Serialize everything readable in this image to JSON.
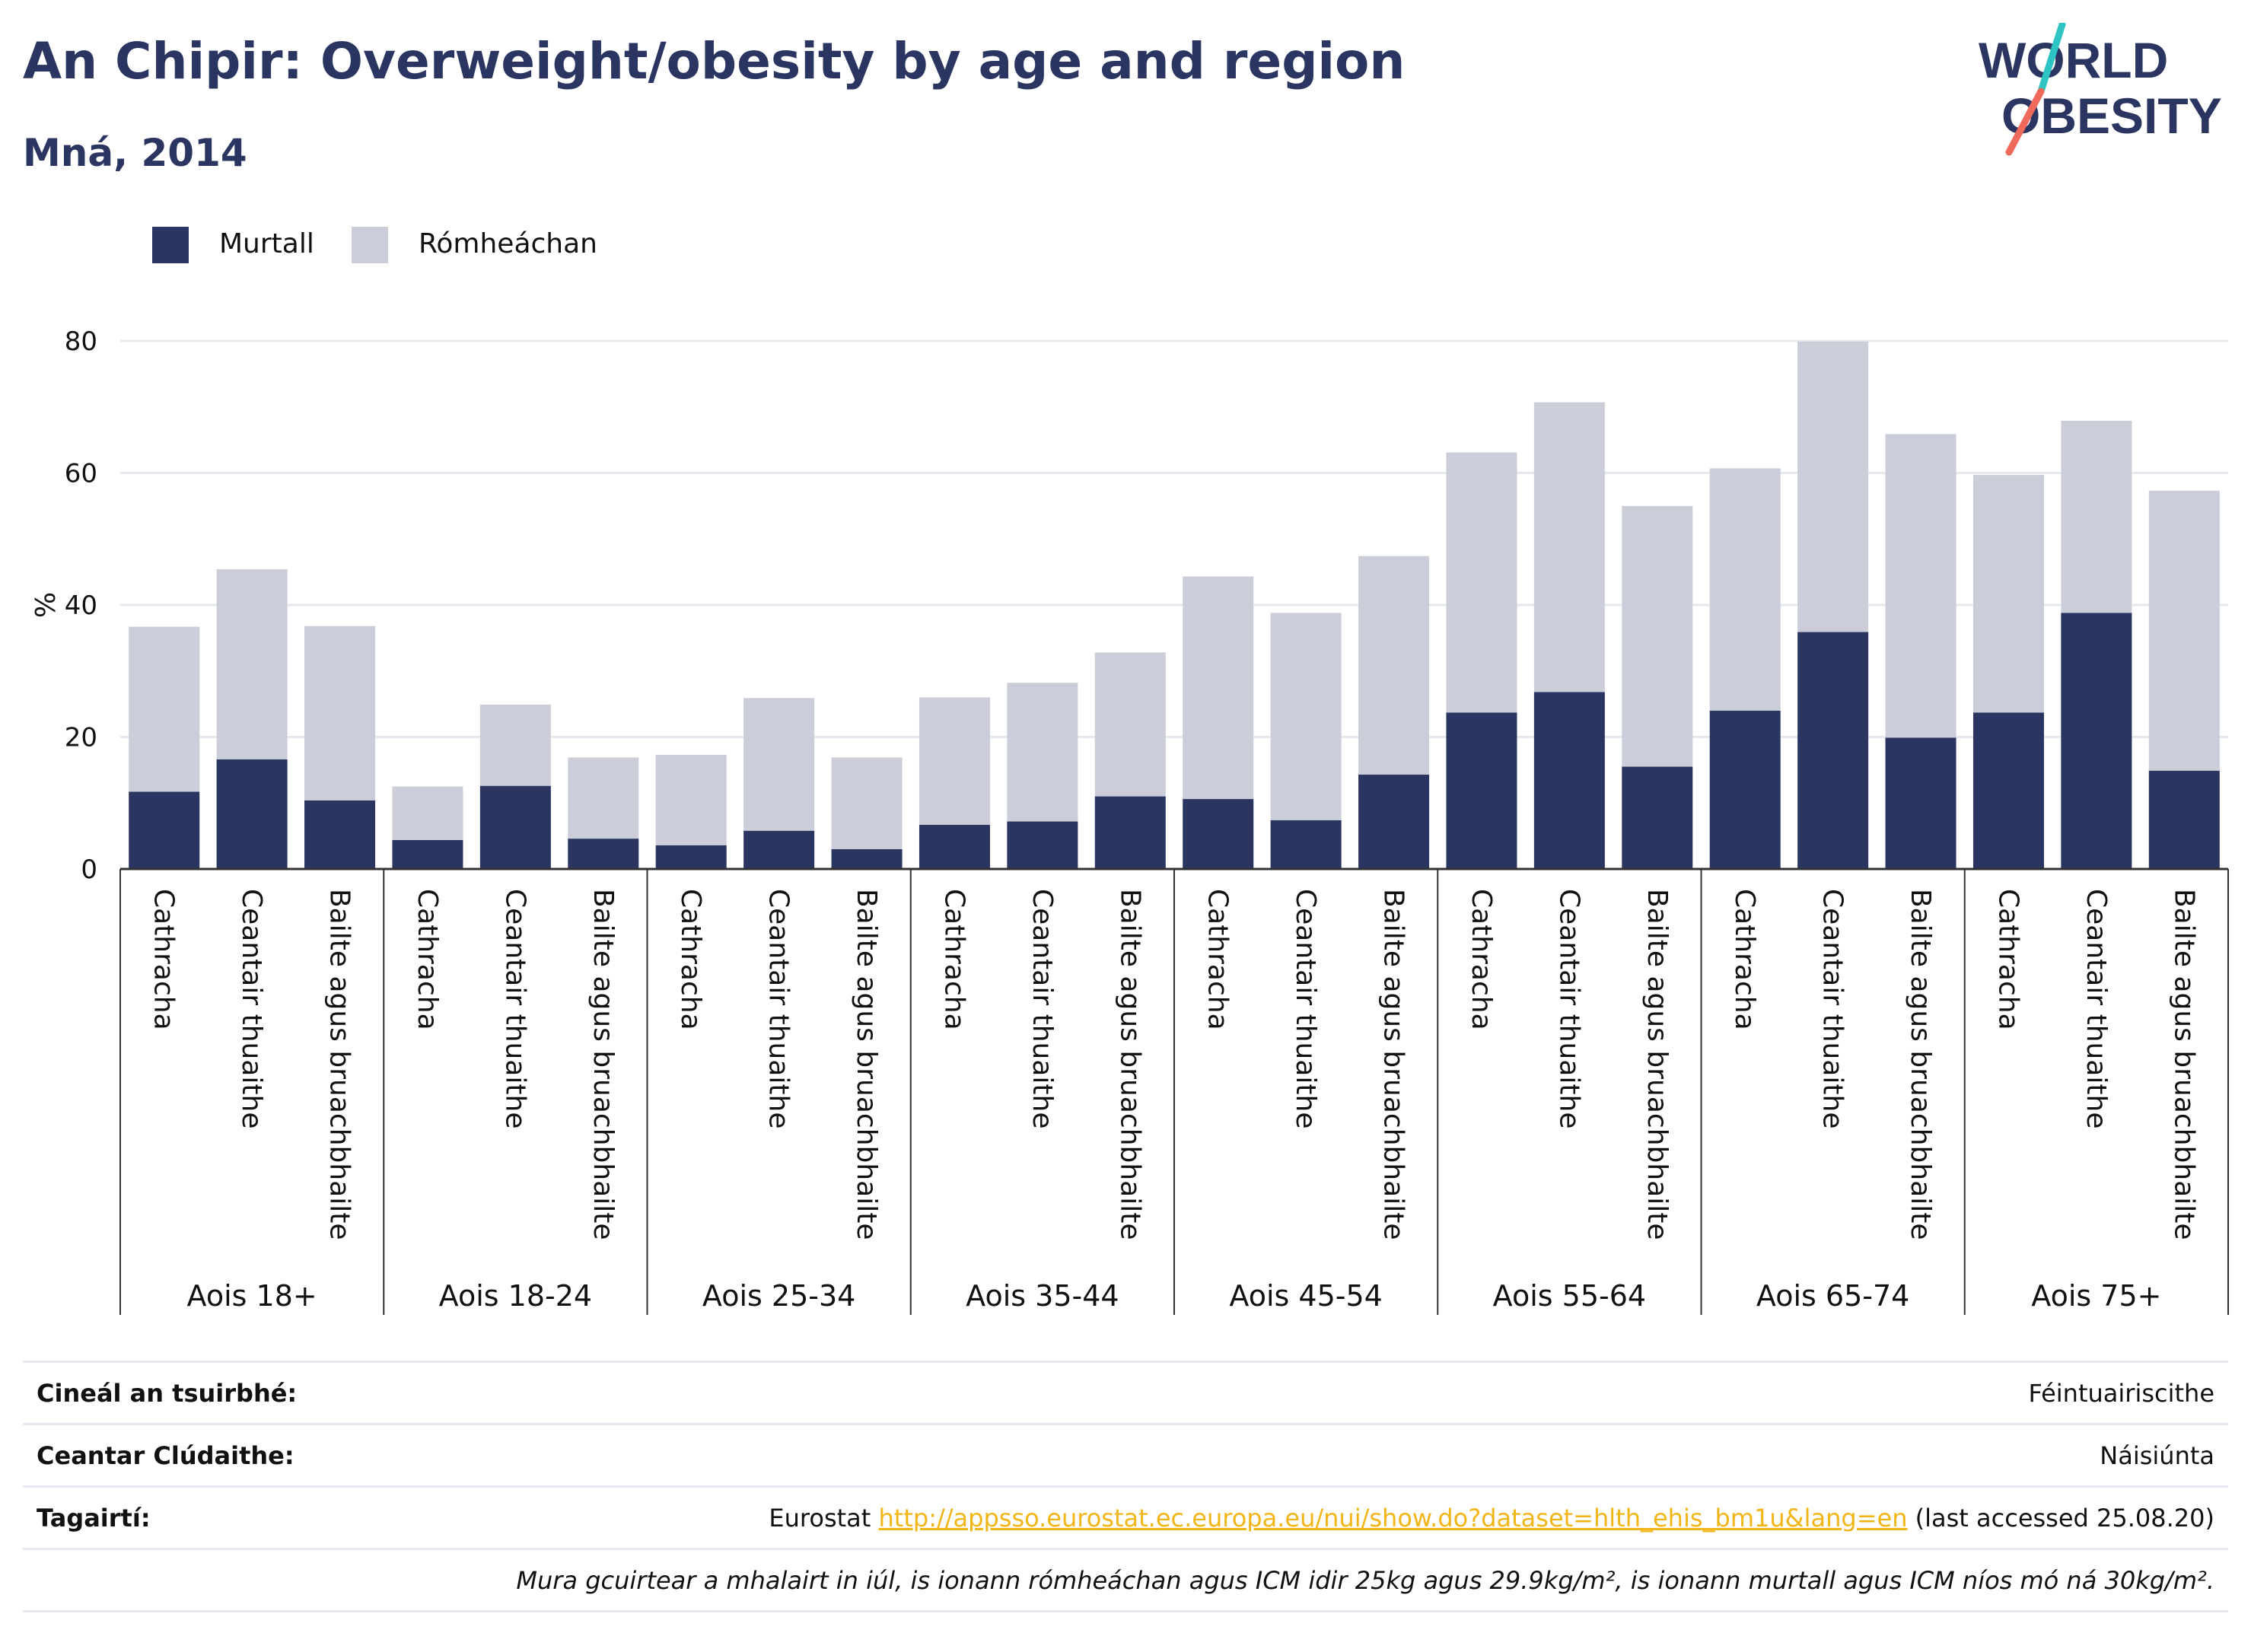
{
  "header": {
    "title": "An Chipir: Overweight/obesity by age and region",
    "subtitle": "Mná, 2014"
  },
  "logo": {
    "line1": "WORLD",
    "line2": "OBESITY",
    "colors": {
      "text": "#2b3561",
      "slash_top": "#2fc4c4",
      "slash_bottom": "#ef6a5a"
    }
  },
  "legend": {
    "items": [
      {
        "label": "Murtall",
        "color": "#2b3561"
      },
      {
        "label": "Rómheáchan",
        "color": "#cbcdd9"
      }
    ]
  },
  "chart_data": {
    "type": "bar",
    "stacked": true,
    "ylabel": "%",
    "ylim": [
      0,
      80
    ],
    "yticks": [
      0,
      20,
      40,
      60,
      80
    ],
    "grid": true,
    "legend_position": "top-left",
    "groups": [
      "Aois 18+",
      "Aois 18-24",
      "Aois 25-34",
      "Aois 35-44",
      "Aois 45-54",
      "Aois 55-64",
      "Aois 65-74",
      "Aois 75+"
    ],
    "categories": [
      "Cathracha",
      "Ceantair thuaithe",
      "Bailte agus bruachbhailte"
    ],
    "series": [
      {
        "name": "Murtall",
        "color": "#2b3561",
        "values": [
          [
            11.7,
            16.6,
            10.4
          ],
          [
            4.4,
            12.6,
            4.6
          ],
          [
            3.6,
            5.8,
            3.0
          ],
          [
            6.7,
            7.2,
            11.0
          ],
          [
            10.6,
            7.4,
            14.3
          ],
          [
            23.7,
            26.8,
            15.5
          ],
          [
            24.0,
            35.9,
            19.9
          ],
          [
            23.7,
            38.8,
            14.9
          ]
        ]
      },
      {
        "name": "Rómheáchan",
        "color": "#cbcdd9",
        "values": [
          [
            25.0,
            28.8,
            26.4
          ],
          [
            8.1,
            12.3,
            12.3
          ],
          [
            13.7,
            20.1,
            13.9
          ],
          [
            19.3,
            21.0,
            21.8
          ],
          [
            33.7,
            31.4,
            33.1
          ],
          [
            39.4,
            43.9,
            39.5
          ],
          [
            36.7,
            44.0,
            46.0
          ],
          [
            36.0,
            29.1,
            42.4
          ]
        ]
      }
    ]
  },
  "info": {
    "survey_type": {
      "label": "Cineál an tsuirbhé:",
      "value": "Féintuairiscithe"
    },
    "coverage": {
      "label": "Ceantar Clúdaithe:",
      "value": "Náisiúnta"
    },
    "references": {
      "label": "Tagairtí:",
      "prefix": "Eurostat ",
      "link": "http://appsso.eurostat.ec.europa.eu/nui/show.do?dataset=hlth_ehis_bm1u&lang=en",
      "suffix": " (last accessed 25.08.20)"
    },
    "note": "Mura gcuirtear a mhalairt in iúl, is ionann rómheáchan agus ICM idir 25kg agus 29.9kg/m², is ionann murtall agus ICM níos mó ná 30kg/m²."
  }
}
